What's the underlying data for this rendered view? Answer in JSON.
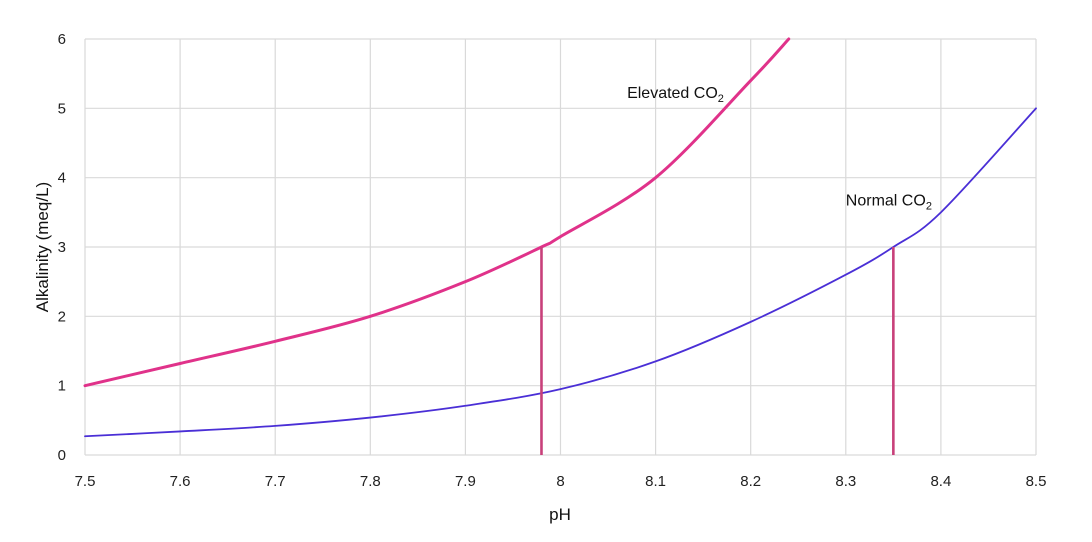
{
  "chart_data": {
    "type": "line",
    "title": "",
    "xlabel": "pH",
    "ylabel": "Alkalinity (meq/L)",
    "xlim": [
      7.5,
      8.5
    ],
    "ylim": [
      0,
      6
    ],
    "x_ticks": [
      "7.5",
      "7.6",
      "7.7",
      "7.8",
      "7.9",
      "8",
      "8.1",
      "8.2",
      "8.3",
      "8.4",
      "8.5"
    ],
    "y_ticks": [
      "0",
      "1",
      "2",
      "3",
      "4",
      "5",
      "6"
    ],
    "grid": true,
    "series": [
      {
        "name": "Elevated CO2",
        "color": "#e0328a",
        "x": [
          7.5,
          7.6,
          7.7,
          7.8,
          7.9,
          7.98,
          8.0,
          8.1,
          8.2,
          8.24
        ],
        "y": [
          1.0,
          1.32,
          1.64,
          2.0,
          2.5,
          3.0,
          3.15,
          4.0,
          5.4,
          6.0
        ]
      },
      {
        "name": "Normal CO2",
        "color": "#4a2fd6",
        "x": [
          7.5,
          7.6,
          7.7,
          7.8,
          7.9,
          8.0,
          8.1,
          8.2,
          8.3,
          8.35,
          8.4,
          8.5
        ],
        "y": [
          0.27,
          0.34,
          0.42,
          0.54,
          0.71,
          0.95,
          1.35,
          1.92,
          2.6,
          3.0,
          3.5,
          5.0
        ]
      }
    ],
    "annotations": [
      {
        "id": "elevated",
        "text": "Elevated CO",
        "sub": "2",
        "x": 8.07,
        "y": 5.15
      },
      {
        "id": "normal",
        "text": "Normal CO",
        "sub": "2",
        "x": 8.3,
        "y": 3.6
      }
    ],
    "markers": [
      {
        "x": 7.98,
        "y": 3.0,
        "color": "#c8407a"
      },
      {
        "x": 8.35,
        "y": 3.0,
        "color": "#c8407a"
      }
    ]
  }
}
